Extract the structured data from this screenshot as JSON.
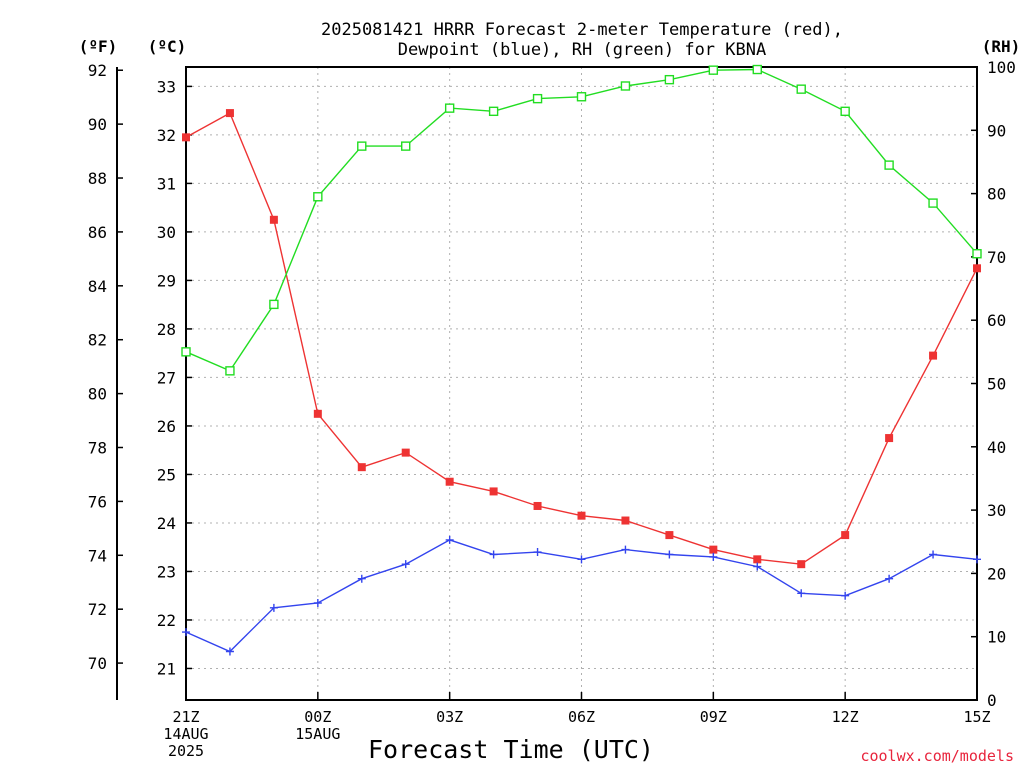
{
  "chart_data": {
    "type": "line",
    "title": [
      "2025081421 HRRR Forecast 2-meter Temperature (red),",
      "Dewpoint (blue), RH (green) for KBNA"
    ],
    "xlabel": "Forecast Time (UTC)",
    "credit": "coolwx.com/models",
    "units": {
      "fahrenheit": "(ºF)",
      "celsius": "(ºC)",
      "rh": "(RH)"
    },
    "x_ticks": [
      {
        "hour": 0,
        "lines": [
          "21Z",
          "14AUG",
          "2025"
        ]
      },
      {
        "hour": 3,
        "lines": [
          "00Z",
          "15AUG"
        ]
      },
      {
        "hour": 6,
        "lines": [
          "03Z"
        ]
      },
      {
        "hour": 9,
        "lines": [
          "06Z"
        ]
      },
      {
        "hour": 12,
        "lines": [
          "09Z"
        ]
      },
      {
        "hour": 15,
        "lines": [
          "12Z"
        ]
      },
      {
        "hour": 18,
        "lines": [
          "15Z"
        ]
      }
    ],
    "x_range": [
      0,
      18
    ],
    "celsius_axis": {
      "range": [
        20.35,
        33.4
      ],
      "ticks": [
        21,
        22,
        23,
        24,
        25,
        26,
        27,
        28,
        29,
        30,
        31,
        32,
        33
      ]
    },
    "fahrenheit_axis": {
      "ticks": [
        70,
        72,
        74,
        76,
        78,
        80,
        82,
        84,
        86,
        88,
        90,
        92
      ]
    },
    "rh_axis": {
      "range": [
        0,
        100
      ],
      "ticks": [
        0,
        10,
        20,
        30,
        40,
        50,
        60,
        70,
        80,
        90,
        100
      ]
    },
    "grid": true,
    "series": [
      {
        "name": "Temperature",
        "color": "#ee3333",
        "marker": "filled-square",
        "axis": "celsius",
        "x": [
          0,
          1,
          2,
          3,
          4,
          5,
          6,
          7,
          8,
          9,
          10,
          11,
          12,
          13,
          14,
          15,
          16,
          17,
          18
        ],
        "values": [
          31.95,
          32.45,
          30.25,
          26.25,
          25.15,
          25.45,
          24.85,
          24.65,
          24.35,
          24.15,
          24.05,
          23.75,
          23.45,
          23.25,
          23.15,
          23.75,
          25.75,
          27.45,
          29.25
        ]
      },
      {
        "name": "Dewpoint",
        "color": "#3344ee",
        "marker": "plus",
        "axis": "celsius",
        "x": [
          0,
          1,
          2,
          3,
          4,
          5,
          6,
          7,
          8,
          9,
          10,
          11,
          12,
          13,
          14,
          15,
          16,
          17,
          18
        ],
        "values": [
          21.75,
          21.35,
          22.25,
          22.35,
          22.85,
          23.15,
          23.65,
          23.35,
          23.4,
          23.25,
          23.45,
          23.35,
          23.3,
          23.1,
          22.55,
          22.5,
          22.85,
          23.35,
          23.25
        ]
      },
      {
        "name": "RH",
        "color": "#22dd22",
        "marker": "open-square",
        "axis": "rh",
        "x": [
          0,
          1,
          2,
          3,
          4,
          5,
          6,
          7,
          8,
          9,
          10,
          11,
          12,
          13,
          14,
          15,
          16,
          17,
          18
        ],
        "values": [
          55,
          52,
          62.5,
          79.5,
          87.5,
          87.5,
          93.5,
          93,
          95,
          95.3,
          97,
          98,
          99.5,
          99.6,
          96.5,
          93,
          84.5,
          78.5,
          70.5
        ]
      }
    ]
  }
}
